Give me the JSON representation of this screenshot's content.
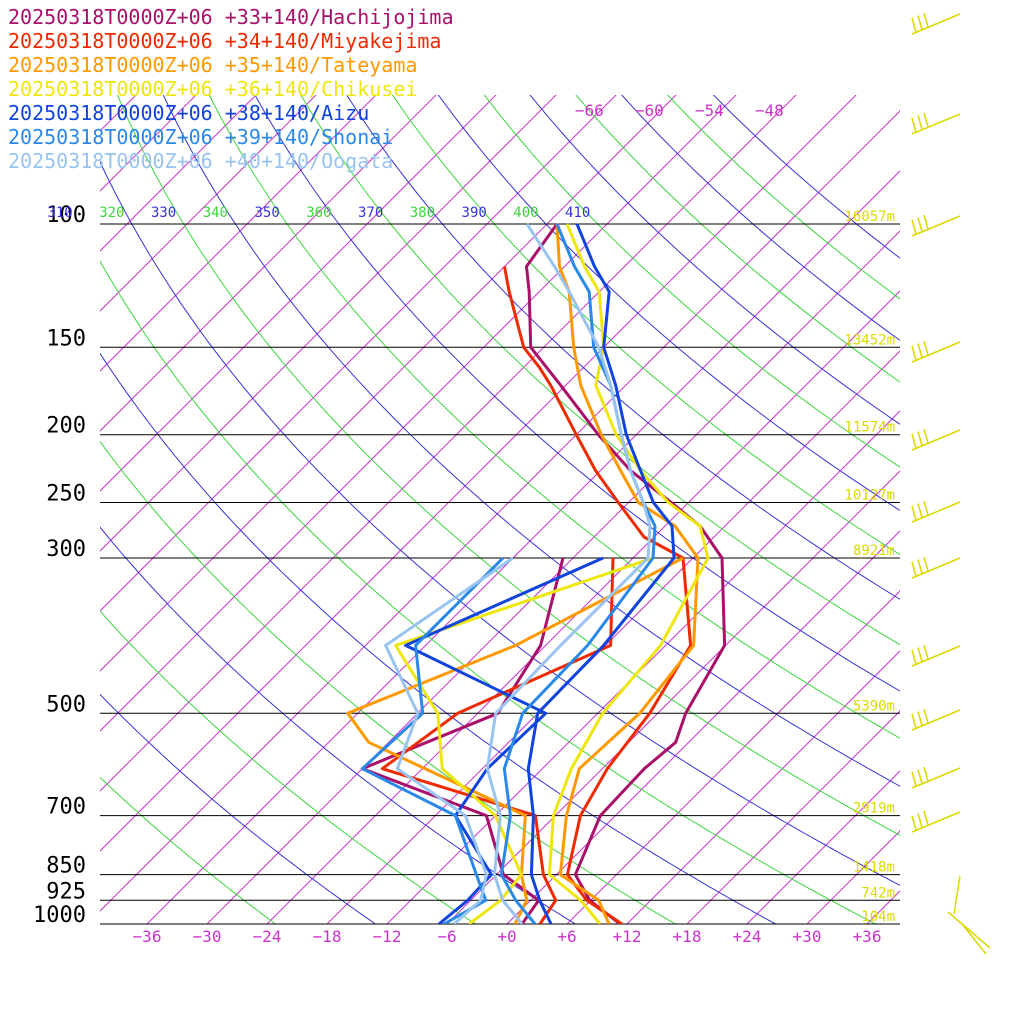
{
  "chart_data": {
    "type": "line",
    "chart_kind": "skew-T log-P sounding",
    "x_unit": "deg C",
    "y_unit": "hPa",
    "xlim": [
      -40,
      40
    ],
    "ylim": [
      1000,
      100
    ],
    "y_scale": "log",
    "pressure_ticks": [
      {
        "p": 100,
        "label": "100"
      },
      {
        "p": 150,
        "label": "150"
      },
      {
        "p": 200,
        "label": "200"
      },
      {
        "p": 250,
        "label": "250"
      },
      {
        "p": 300,
        "label": "300"
      },
      {
        "p": 500,
        "label": "500"
      },
      {
        "p": 700,
        "label": "700"
      },
      {
        "p": 850,
        "label": "850"
      },
      {
        "p": 925,
        "label": "925"
      },
      {
        "p": 1000,
        "label": "1000"
      }
    ],
    "temperature_ticks": [
      {
        "t": -36,
        "label": "−36"
      },
      {
        "t": -30,
        "label": "−30"
      },
      {
        "t": -24,
        "label": "−24"
      },
      {
        "t": -18,
        "label": "−18"
      },
      {
        "t": -12,
        "label": "−12"
      },
      {
        "t": -6,
        "label": "−6"
      },
      {
        "t": 0,
        "label": "+0"
      },
      {
        "t": 6,
        "label": "+6"
      },
      {
        "t": 12,
        "label": "+12"
      },
      {
        "t": 18,
        "label": "+18"
      },
      {
        "t": 24,
        "label": "+24"
      },
      {
        "t": 30,
        "label": "+30"
      },
      {
        "t": 36,
        "label": "+36"
      }
    ],
    "upper_temperature_labels": [
      {
        "t": -66,
        "label": "−66"
      },
      {
        "t": -60,
        "label": "−60"
      },
      {
        "t": -54,
        "label": "−54"
      },
      {
        "t": -48,
        "label": "−48"
      }
    ],
    "height_labels": [
      {
        "p": 100,
        "label": "16057m"
      },
      {
        "p": 150,
        "label": "13452m"
      },
      {
        "p": 200,
        "label": "11574m"
      },
      {
        "p": 250,
        "label": "10127m"
      },
      {
        "p": 300,
        "label": "8921m"
      },
      {
        "p": 500,
        "label": "5390m"
      },
      {
        "p": 700,
        "label": "2919m"
      },
      {
        "p": 850,
        "label": "1418m"
      },
      {
        "p": 925,
        "label": "742m"
      },
      {
        "p": 1000,
        "label": "104m"
      }
    ],
    "theta_labels": [
      "310",
      "320",
      "330",
      "340",
      "350",
      "360",
      "370",
      "380",
      "390",
      "400",
      "410"
    ],
    "theta_colors": [
      "#3535d6",
      "#3cd63c"
    ],
    "isotherm_color": "#cc33cc",
    "height_label_color": "#dada00",
    "wind_barb_color": "#dada00",
    "series": [
      {
        "name": "20250318T0000Z+06 +33+140/Hachijojima",
        "color": "#a8106a",
        "temperature": [
          [
            1000,
            11.3
          ],
          [
            925,
            5.9
          ],
          [
            850,
            1.9
          ],
          [
            700,
            -1.5
          ],
          [
            600,
            -1.8
          ],
          [
            550,
            -1.3
          ],
          [
            500,
            -3.2
          ],
          [
            400,
            -6.1
          ],
          [
            300,
            -15.1
          ],
          [
            270,
            -20.5
          ],
          [
            250,
            -25.7
          ],
          [
            225,
            -33
          ],
          [
            200,
            -39.8
          ],
          [
            170,
            -48.5
          ],
          [
            150,
            -55.3
          ],
          [
            125,
            -61
          ],
          [
            115,
            -63.8
          ],
          [
            100,
            -65
          ]
        ],
        "dewpoint": [
          [
            1000,
            1.5
          ],
          [
            925,
            0.8
          ],
          [
            850,
            -5.3
          ],
          [
            700,
            -12.9
          ],
          [
            600,
            -30
          ],
          [
            500,
            -22
          ],
          [
            400,
            -24.5
          ],
          [
            300,
            -31
          ]
        ]
      },
      {
        "name": "20250318T0000Z+06 +34+140/Miyakejima",
        "color": "#ee2a00",
        "temperature": [
          [
            1000,
            11.5
          ],
          [
            925,
            5.6
          ],
          [
            850,
            1.1
          ],
          [
            700,
            -3.5
          ],
          [
            600,
            -5.5
          ],
          [
            500,
            -6.8
          ],
          [
            400,
            -9.5
          ],
          [
            300,
            -19
          ],
          [
            280,
            -25
          ],
          [
            250,
            -31
          ],
          [
            225,
            -36.5
          ],
          [
            200,
            -42
          ],
          [
            170,
            -49.5
          ],
          [
            160,
            -52.5
          ],
          [
            150,
            -56
          ],
          [
            125,
            -63
          ],
          [
            115,
            -66
          ]
        ],
        "dewpoint": [
          [
            1000,
            3.3
          ],
          [
            925,
            2.5
          ],
          [
            850,
            -1.3
          ],
          [
            700,
            -8
          ],
          [
            600,
            -28
          ],
          [
            500,
            -26
          ],
          [
            400,
            -17.5
          ],
          [
            300,
            -26
          ]
        ]
      },
      {
        "name": "20250318T0000Z+06 +35+140/Tateyama",
        "color": "#ff9900",
        "temperature": [
          [
            1000,
            10.2
          ],
          [
            925,
            6.8
          ],
          [
            850,
            0.4
          ],
          [
            700,
            -4.9
          ],
          [
            600,
            -8.3
          ],
          [
            500,
            -7.8
          ],
          [
            400,
            -9.2
          ],
          [
            300,
            -17.5
          ],
          [
            270,
            -23
          ],
          [
            250,
            -29
          ],
          [
            225,
            -34
          ],
          [
            200,
            -39.5
          ],
          [
            170,
            -46.5
          ],
          [
            150,
            -51
          ],
          [
            125,
            -57
          ],
          [
            115,
            -60.5
          ],
          [
            100,
            -65
          ]
        ],
        "dewpoint": [
          [
            1000,
            0.8
          ],
          [
            925,
            -0.4
          ],
          [
            850,
            -3.5
          ],
          [
            700,
            -9
          ],
          [
            550,
            -32
          ],
          [
            500,
            -37
          ],
          [
            400,
            -27
          ],
          [
            300,
            -19
          ]
        ]
      },
      {
        "name": "20250318T0000Z+06 +36+140/Chikusei",
        "color": "#f0e60f",
        "temperature": [
          [
            1000,
            9.3
          ],
          [
            925,
            5
          ],
          [
            850,
            -0.7
          ],
          [
            700,
            -6.2
          ],
          [
            600,
            -9.1
          ],
          [
            500,
            -11.5
          ],
          [
            400,
            -12.5
          ],
          [
            300,
            -16.5
          ],
          [
            270,
            -20.5
          ],
          [
            250,
            -26
          ],
          [
            225,
            -32
          ],
          [
            200,
            -38
          ],
          [
            170,
            -45
          ],
          [
            150,
            -48
          ],
          [
            125,
            -54
          ],
          [
            115,
            -58
          ],
          [
            100,
            -64
          ]
        ],
        "dewpoint": [
          [
            1000,
            -3.8
          ],
          [
            925,
            -3
          ],
          [
            850,
            -3.5
          ],
          [
            700,
            -12
          ],
          [
            600,
            -22
          ],
          [
            500,
            -28
          ],
          [
            400,
            -39
          ],
          [
            300,
            -22
          ]
        ]
      },
      {
        "name": "20250318T0000Z+06 +38+140/Aizu",
        "color": "#1144dd",
        "temperature": [
          [
            1000,
            4.4
          ],
          [
            925,
            0.9
          ],
          [
            850,
            -2.5
          ],
          [
            700,
            -8.2
          ],
          [
            600,
            -13.4
          ],
          [
            500,
            -18
          ],
          [
            400,
            -18.2
          ],
          [
            300,
            -19.9
          ],
          [
            270,
            -23.3
          ],
          [
            250,
            -27.5
          ],
          [
            225,
            -32
          ],
          [
            200,
            -37
          ],
          [
            170,
            -43
          ],
          [
            150,
            -48
          ],
          [
            125,
            -53
          ],
          [
            115,
            -57
          ],
          [
            100,
            -63
          ]
        ],
        "dewpoint": [
          [
            1000,
            -6.8
          ],
          [
            925,
            -6.3
          ],
          [
            850,
            -6.5
          ],
          [
            700,
            -16
          ],
          [
            600,
            -17.5
          ],
          [
            500,
            -17.2
          ],
          [
            400,
            -38
          ],
          [
            300,
            -27
          ]
        ]
      },
      {
        "name": "20250318T0000Z+06 +39+140/Shonai",
        "color": "#2a88e8",
        "temperature": [
          [
            1000,
            2.8
          ],
          [
            925,
            -1.5
          ],
          [
            850,
            -5.5
          ],
          [
            700,
            -10.5
          ],
          [
            600,
            -15.8
          ],
          [
            500,
            -19.5
          ],
          [
            400,
            -19.8
          ],
          [
            300,
            -22
          ],
          [
            270,
            -25
          ],
          [
            250,
            -28.5
          ],
          [
            225,
            -33
          ],
          [
            200,
            -37.5
          ],
          [
            170,
            -43.5
          ],
          [
            150,
            -49
          ],
          [
            125,
            -55
          ],
          [
            115,
            -59
          ],
          [
            100,
            -65
          ]
        ],
        "dewpoint": [
          [
            1000,
            -6.3
          ],
          [
            925,
            -4.5
          ],
          [
            850,
            -8
          ],
          [
            700,
            -16
          ],
          [
            600,
            -30
          ],
          [
            500,
            -29.5
          ],
          [
            400,
            -37
          ],
          [
            300,
            -37
          ]
        ]
      },
      {
        "name": "20250318T0000Z+06 +40+140/Oogata",
        "color": "#99c4f0",
        "temperature": [
          [
            1000,
            1.5
          ],
          [
            925,
            -2.8
          ],
          [
            850,
            -6.2
          ],
          [
            700,
            -11.5
          ],
          [
            600,
            -17.5
          ],
          [
            500,
            -22.2
          ],
          [
            400,
            -22.5
          ],
          [
            300,
            -22.5
          ],
          [
            270,
            -25.5
          ],
          [
            250,
            -28.5
          ],
          [
            225,
            -33
          ],
          [
            200,
            -37.5
          ],
          [
            170,
            -43.5
          ],
          [
            150,
            -48.5
          ],
          [
            125,
            -57
          ],
          [
            115,
            -61
          ],
          [
            100,
            -68
          ]
        ],
        "dewpoint": [
          [
            1000,
            -5.3
          ],
          [
            925,
            -5
          ],
          [
            850,
            -7
          ],
          [
            700,
            -15
          ],
          [
            600,
            -26.5
          ],
          [
            500,
            -30
          ],
          [
            400,
            -40
          ],
          [
            300,
            -36
          ]
        ]
      }
    ]
  }
}
